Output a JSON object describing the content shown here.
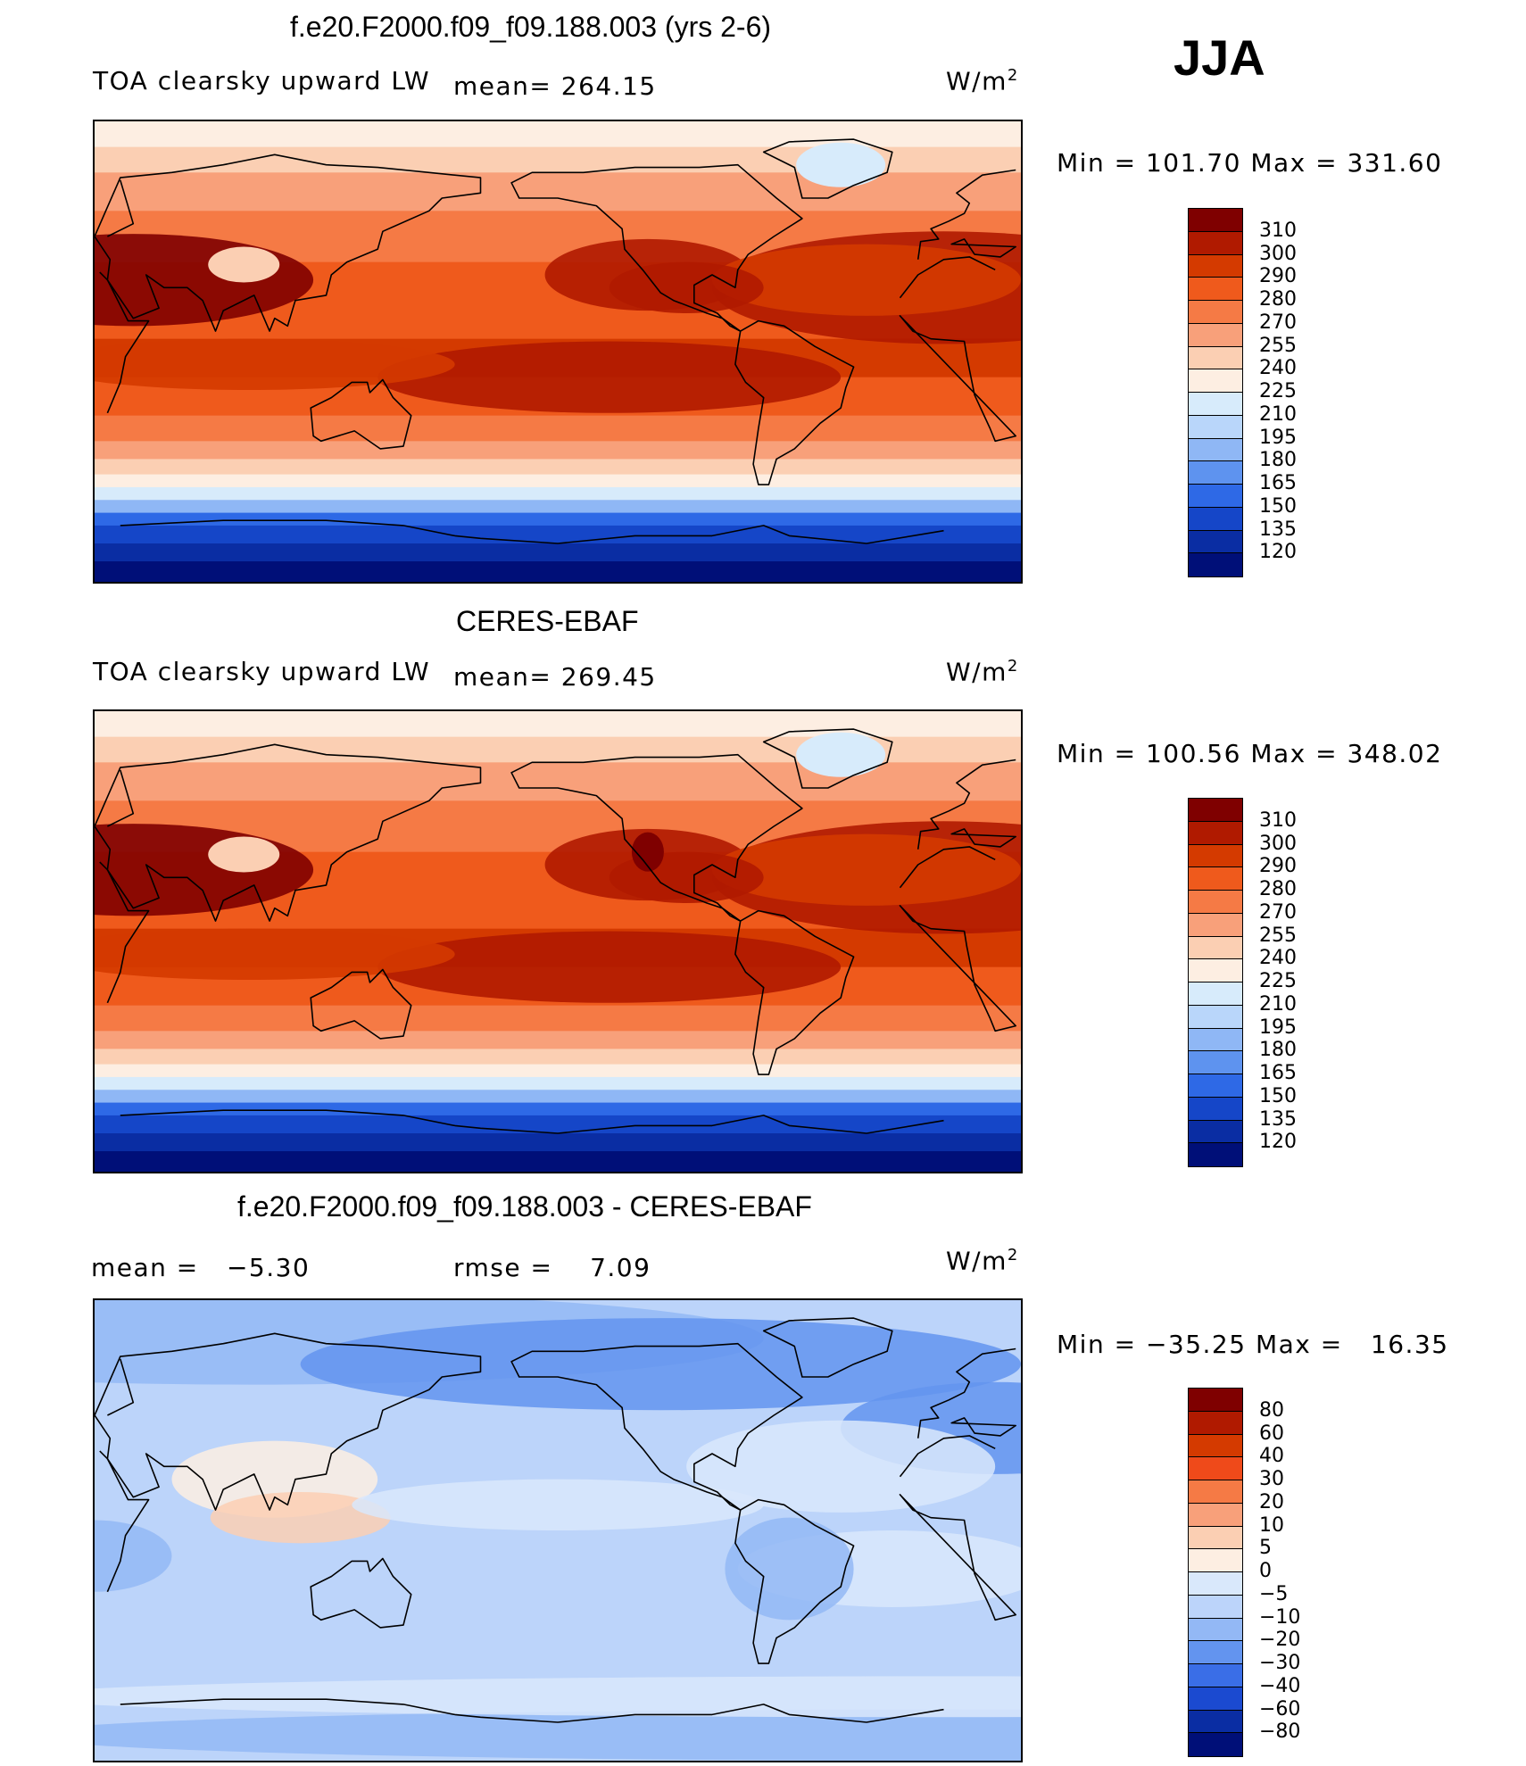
{
  "season": "JJA",
  "units": "W/m",
  "units_sup": "2",
  "panels": [
    {
      "title": "f.e20.F2000.f09_f09.188.003 (yrs 2-6)",
      "variable": "TOA clearsky upward LW",
      "mean_text": "mean= 264.15",
      "minmax": "Min = 101.70 Max = 331.60",
      "scheme": "abs"
    },
    {
      "title": "CERES-EBAF",
      "variable": "TOA clearsky upward LW",
      "mean_text": "mean= 269.45",
      "minmax": "Min = 100.56 Max = 348.02",
      "scheme": "abs"
    },
    {
      "title": "f.e20.F2000.f09_f09.188.003 - CERES-EBAF",
      "mean_text": "mean =   −5.30",
      "rmse_text": "rmse =    7.09",
      "minmax": "Min = −35.25 Max =   16.35",
      "scheme": "diff"
    }
  ],
  "chart_data": [
    {
      "type": "heatmap",
      "title": "f.e20.F2000.f09_f09.188.003 (yrs 2-6)",
      "subtitle": "TOA clearsky upward LW",
      "mean": 264.15,
      "min": 101.7,
      "max": 331.6,
      "units": "W/m^2",
      "colorbar_levels": [
        310,
        300,
        290,
        280,
        270,
        255,
        240,
        225,
        210,
        195,
        180,
        165,
        150,
        135,
        120
      ]
    },
    {
      "type": "heatmap",
      "title": "CERES-EBAF",
      "subtitle": "TOA clearsky upward LW",
      "mean": 269.45,
      "min": 100.56,
      "max": 348.02,
      "units": "W/m^2",
      "colorbar_levels": [
        310,
        300,
        290,
        280,
        270,
        255,
        240,
        225,
        210,
        195,
        180,
        165,
        150,
        135,
        120
      ]
    },
    {
      "type": "heatmap",
      "title": "f.e20.F2000.f09_f09.188.003 - CERES-EBAF",
      "mean": -5.3,
      "rmse": 7.09,
      "min": -35.25,
      "max": 16.35,
      "units": "W/m^2",
      "colorbar_levels": [
        "80",
        "60",
        "40",
        "30",
        "20",
        "10",
        "5",
        "0",
        "−5",
        "−10",
        "−20",
        "−30",
        "−40",
        "−60",
        "−80"
      ]
    }
  ],
  "colors": {
    "abs": [
      "#7f0000",
      "#b01a00",
      "#d43a00",
      "#ef5a1c",
      "#f57a45",
      "#f8a07a",
      "#fbcfb3",
      "#fdeee2",
      "#d7ebfb",
      "#b9d6fa",
      "#8fb7f5",
      "#5e93ef",
      "#2e69e6",
      "#1546c8",
      "#0a2da3",
      "#000f78"
    ],
    "diff": [
      "#7f0000",
      "#b01a00",
      "#d43a00",
      "#ef4a1a",
      "#f57a45",
      "#f8a07a",
      "#fbcfb3",
      "#fdeee2",
      "#d9e8fb",
      "#bcd4fa",
      "#93b8f5",
      "#6394ef",
      "#3a6ee7",
      "#1b4ad0",
      "#0a2da3",
      "#000f78"
    ]
  }
}
